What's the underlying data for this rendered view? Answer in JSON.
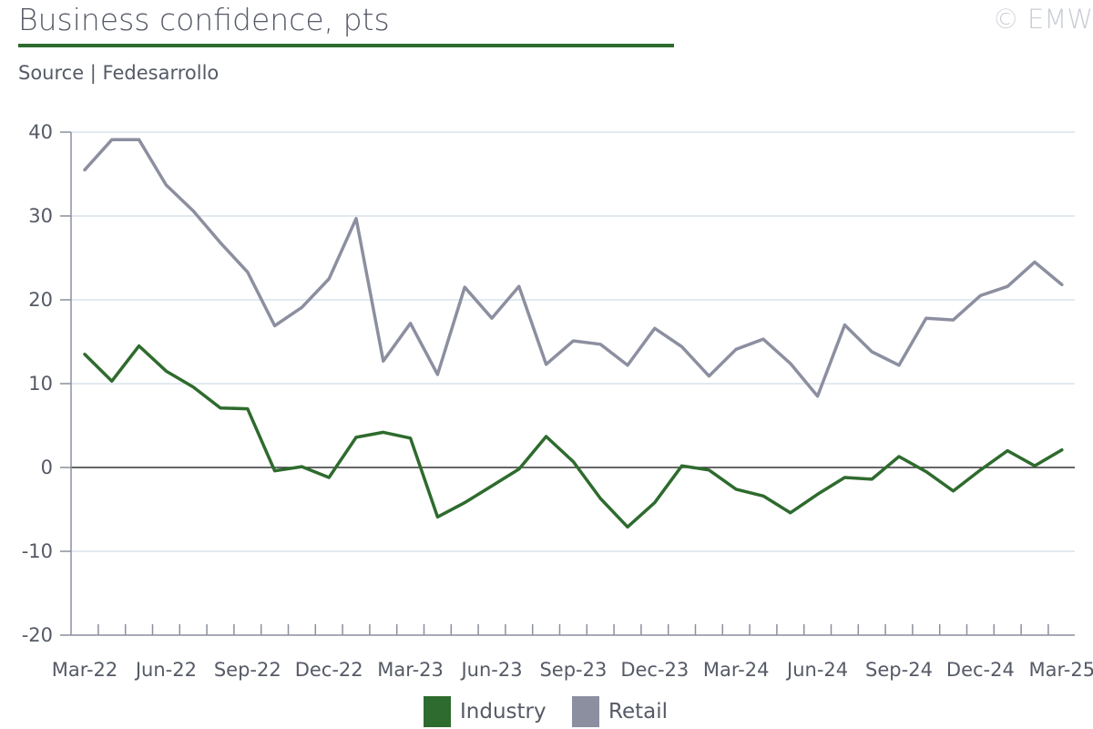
{
  "header": {
    "title": "Business confidence, pts",
    "source": "Source | Fedesarrollo",
    "copyright": "© EMW"
  },
  "colors": {
    "industry": "#2e6b2e",
    "retail": "#8c8fa0",
    "grid": "#d8e4ec",
    "axis": "#8a8f9c",
    "zero_line": "#333333"
  },
  "chart_data": {
    "type": "line",
    "title": "Business confidence, pts",
    "ylim": [
      -20,
      40
    ],
    "yticks": [
      -20,
      -10,
      0,
      10,
      20,
      30,
      40
    ],
    "grid": true,
    "legend_position": "bottom",
    "x": [
      "Mar-22",
      "Apr-22",
      "May-22",
      "Jun-22",
      "Jul-22",
      "Aug-22",
      "Sep-22",
      "Oct-22",
      "Nov-22",
      "Dec-22",
      "Jan-23",
      "Feb-23",
      "Mar-23",
      "Apr-23",
      "May-23",
      "Jun-23",
      "Jul-23",
      "Aug-23",
      "Sep-23",
      "Oct-23",
      "Nov-23",
      "Dec-23",
      "Jan-24",
      "Feb-24",
      "Mar-24",
      "Apr-24",
      "May-24",
      "Jun-24",
      "Jul-24",
      "Aug-24",
      "Sep-24",
      "Oct-24",
      "Nov-24",
      "Dec-24",
      "Jan-25",
      "Feb-25",
      "Mar-25"
    ],
    "x_tick_labels": [
      "Mar-22",
      "Jun-22",
      "Sep-22",
      "Dec-22",
      "Mar-23",
      "Jun-23",
      "Sep-23",
      "Dec-23",
      "Mar-24",
      "Jun-24",
      "Sep-24",
      "Dec-24",
      "Mar-25"
    ],
    "series": [
      {
        "name": "Industry",
        "color": "#2e6b2e",
        "values": [
          13.5,
          10.3,
          14.5,
          11.5,
          9.6,
          7.1,
          7.0,
          -0.4,
          0.1,
          -1.2,
          3.6,
          4.2,
          3.5,
          -5.9,
          -4.2,
          -2.2,
          -0.2,
          3.7,
          0.7,
          -3.7,
          -7.1,
          -4.2,
          0.2,
          -0.3,
          -2.6,
          -3.4,
          -5.4,
          -3.2,
          -1.2,
          -1.4,
          1.3,
          -0.5,
          -2.8,
          -0.3,
          2.0,
          0.2,
          2.1
        ]
      },
      {
        "name": "Retail",
        "color": "#8c8fa0",
        "values": [
          35.5,
          39.1,
          39.1,
          33.7,
          30.6,
          26.8,
          23.3,
          16.9,
          19.1,
          22.5,
          29.7,
          12.7,
          17.2,
          11.1,
          21.5,
          17.8,
          21.6,
          12.3,
          15.1,
          14.7,
          12.2,
          16.6,
          14.4,
          10.9,
          14.1,
          15.3,
          12.4,
          8.5,
          17.0,
          13.8,
          12.2,
          17.8,
          17.6,
          20.5,
          21.6,
          24.5,
          21.8
        ]
      }
    ]
  },
  "legend": {
    "items": [
      {
        "label": "Industry",
        "color": "#2e6b2e"
      },
      {
        "label": "Retail",
        "color": "#8c8fa0"
      }
    ]
  }
}
